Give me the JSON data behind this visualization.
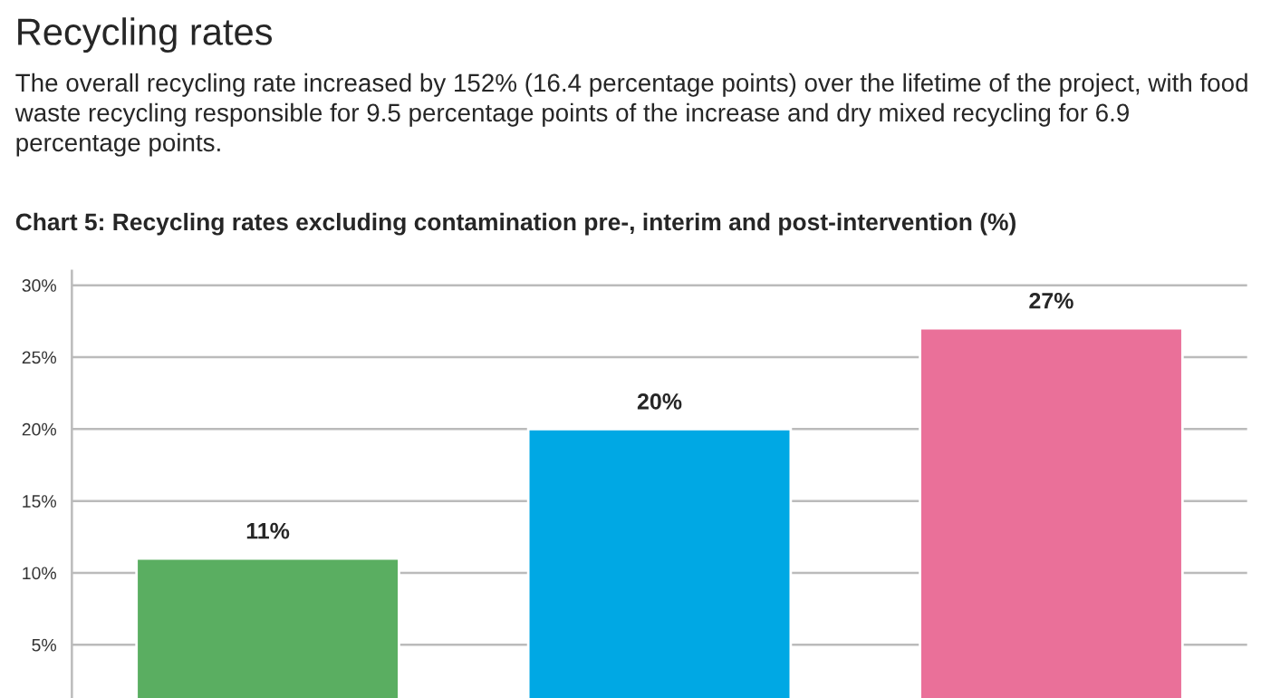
{
  "chart_data": {
    "type": "bar",
    "title": "Recycling rates",
    "subtitle": "The overall recycling rate increased by 152% (16.4 percentage points) over the lifetime of the project, with food waste recycling responsible for 9.5 percentage points of the increase and dry mixed recycling for 6.9 percentage points.",
    "annotations": [
      "Chart 5: Recycling rates excluding contamination pre-, interim and post-intervention (%)"
    ],
    "categories": [
      null,
      null,
      null
    ],
    "values": [
      11,
      20,
      27
    ],
    "colors": [
      "#5aae61",
      "#00a8e4",
      "#ea7099"
    ],
    "value_labels": [
      "11%",
      "20%",
      "27%"
    ],
    "ylim": [
      1.3,
      31
    ],
    "yticks": [
      {
        "value": 5,
        "label": "5%"
      },
      {
        "value": 10,
        "label": "10%"
      },
      {
        "value": 15,
        "label": "15%"
      },
      {
        "value": 20,
        "label": "20%"
      },
      {
        "value": 25,
        "label": "25%"
      },
      {
        "value": 30,
        "label": "30%"
      }
    ],
    "grid": "y",
    "legend": false
  }
}
